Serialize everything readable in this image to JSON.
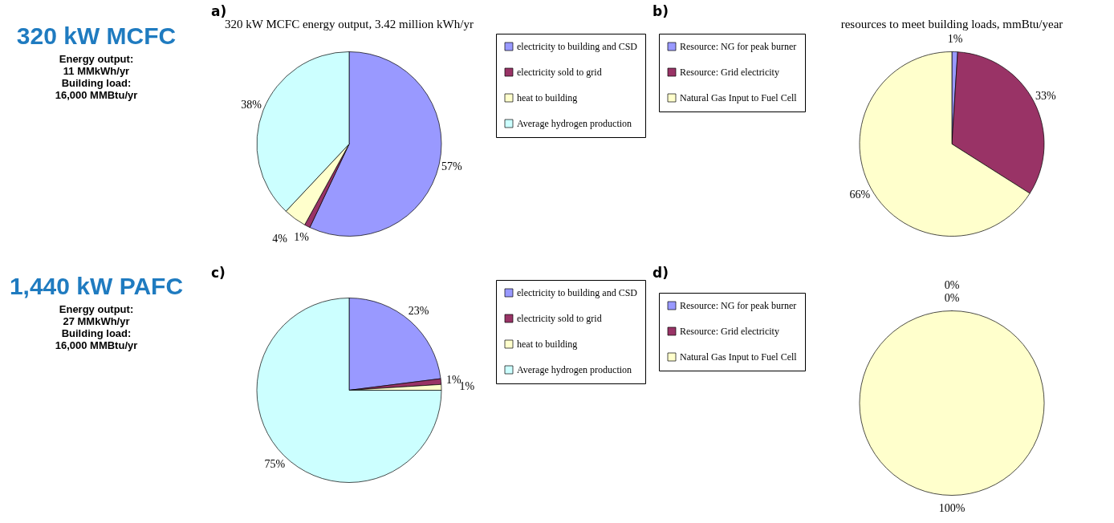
{
  "chart_data": [
    {
      "type": "pie",
      "title": "320 kW MCFC energy output, 3.42 million kWh/yr",
      "annotations": [
        "a)",
        "320 kW MCFC",
        "Energy output:",
        "11 MMkWh/yr",
        "Building load:",
        "16,000 MMBtu/yr"
      ],
      "legend": "right",
      "categories": [
        "electricity to building and CSD",
        "electricity sold to grid",
        "heat to building",
        "Average hydrogen production"
      ],
      "values": [
        57,
        1,
        4,
        38
      ],
      "value_labels": [
        "57%",
        "1%",
        "4%",
        "38%"
      ],
      "colors": [
        "#9999ff",
        "#993366",
        "#ffffcc",
        "#ccffff"
      ]
    },
    {
      "type": "pie",
      "title": "resources to meet building loads, mmBtu/year",
      "annotations": [
        "b)"
      ],
      "legend": "left",
      "categories": [
        "Resource: NG for peak burner",
        "Resource: Grid electricity",
        "Natural Gas Input to Fuel Cell"
      ],
      "values": [
        1,
        33,
        66
      ],
      "value_labels": [
        "1%",
        "33%",
        "66%"
      ],
      "colors": [
        "#9999ff",
        "#993366",
        "#ffffcc"
      ]
    },
    {
      "type": "pie",
      "annotations": [
        "c)",
        "1,440 kW PAFC",
        "Energy output:",
        "27 MMkWh/yr",
        "Building load:",
        "16,000 MMBtu/yr"
      ],
      "legend": "right",
      "categories": [
        "electricity to building and CSD",
        "electricity sold to grid",
        "heat to building",
        "Average hydrogen production"
      ],
      "values": [
        23,
        1,
        1,
        75
      ],
      "value_labels": [
        "23%",
        "1%",
        "1%",
        "75%"
      ],
      "colors": [
        "#9999ff",
        "#993366",
        "#ffffcc",
        "#ccffff"
      ]
    },
    {
      "type": "pie",
      "annotations": [
        "d)"
      ],
      "legend": "left",
      "categories": [
        "Resource: NG for peak burner",
        "Resource: Grid electricity",
        "Natural Gas Input to Fuel Cell"
      ],
      "values": [
        0,
        0,
        100
      ],
      "value_labels": [
        "0%",
        "0%",
        "100%"
      ],
      "colors": [
        "#9999ff",
        "#993366",
        "#ffffcc"
      ]
    }
  ]
}
